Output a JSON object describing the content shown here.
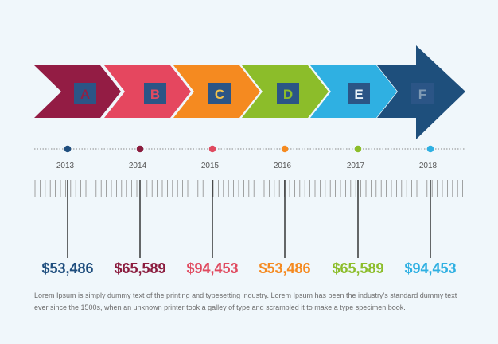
{
  "colors": {
    "background": "#f0f7fb",
    "dotted_line": "#8a8a8a",
    "ruler": "#8c8c8c",
    "connector": "#1a1a1a",
    "year_text": "#555555",
    "description_text": "#6d6d6d"
  },
  "steps": [
    {
      "letter": "A",
      "year": "2013",
      "value": "$53,486",
      "arrow_color": "#931c44",
      "box_color": "#2b5586",
      "letter_color": "#8e2147",
      "dot_color": "#1f4e7e",
      "value_color": "#1f4e7e"
    },
    {
      "letter": "B",
      "year": "2014",
      "value": "$65,589",
      "arrow_color": "#e5475f",
      "box_color": "#2b5586",
      "letter_color": "#e04a5f",
      "dot_color": "#8b1c3e",
      "value_color": "#8b1c3e"
    },
    {
      "letter": "C",
      "year": "2015",
      "value": "$94,453",
      "arrow_color": "#f58a20",
      "box_color": "#2b5586",
      "letter_color": "#f0c14b",
      "dot_color": "#e04a5f",
      "value_color": "#e04a5f"
    },
    {
      "letter": "D",
      "year": "2016",
      "value": "$53,486",
      "arrow_color": "#8cbd2a",
      "box_color": "#2b5586",
      "letter_color": "#8cbd2a",
      "dot_color": "#f58a20",
      "value_color": "#f58a20"
    },
    {
      "letter": "E",
      "year": "2017",
      "value": "$65,589",
      "arrow_color": "#2fb0e2",
      "box_color": "#2b5586",
      "letter_color": "#eaf2f8",
      "dot_color": "#8cbd2a",
      "value_color": "#8cbd2a"
    },
    {
      "letter": "F",
      "year": "2018",
      "value": "$94,453",
      "arrow_color": "#1e4f7c",
      "box_color": "#2b5586",
      "letter_color": "#7f9ab4",
      "dot_color": "#2fb0e2",
      "value_color": "#2fb0e2"
    }
  ],
  "description": "Lorem Ipsum is simply dummy text of the printing and typesetting industry. Lorem Ipsum has been the industry's standard dummy text ever since the 1500s, when an unknown printer took a galley of type and scrambled it to make a type specimen book."
}
